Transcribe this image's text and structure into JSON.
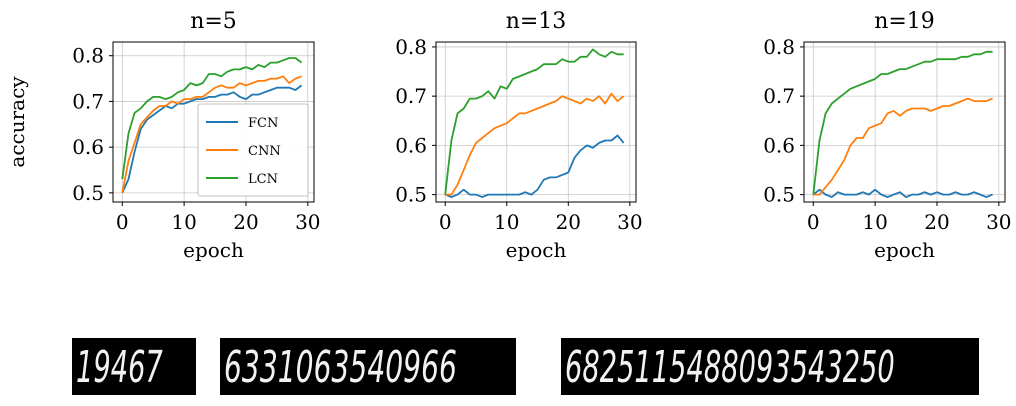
{
  "chart_data": [
    {
      "type": "line",
      "title": "n=5",
      "xlabel": "epoch",
      "ylabel": "accuracy",
      "xlim": [
        -1.5,
        31
      ],
      "ylim": [
        0.48,
        0.83
      ],
      "xticks": [
        0,
        10,
        20,
        30
      ],
      "yticks": [
        0.5,
        0.6,
        0.7,
        0.8
      ],
      "tick_labels_x": [
        "0",
        "10",
        "20",
        "30"
      ],
      "tick_labels_y": [
        "0.5",
        "0.6",
        "0.7",
        "0.8"
      ],
      "grid": true,
      "legend": "bottom-right",
      "series": [
        {
          "name": "FCN",
          "color": "#1f77b4",
          "x": [
            0,
            1,
            2,
            3,
            4,
            5,
            6,
            7,
            8,
            9,
            10,
            11,
            12,
            13,
            14,
            15,
            16,
            17,
            18,
            19,
            20,
            21,
            22,
            23,
            24,
            25,
            26,
            27,
            28,
            29
          ],
          "values": [
            0.5,
            0.53,
            0.59,
            0.64,
            0.66,
            0.67,
            0.68,
            0.69,
            0.685,
            0.695,
            0.695,
            0.7,
            0.705,
            0.705,
            0.71,
            0.71,
            0.715,
            0.715,
            0.72,
            0.71,
            0.705,
            0.715,
            0.715,
            0.72,
            0.725,
            0.73,
            0.73,
            0.73,
            0.725,
            0.735
          ]
        },
        {
          "name": "CNN",
          "color": "#ff7f0e",
          "x": [
            0,
            1,
            2,
            3,
            4,
            5,
            6,
            7,
            8,
            9,
            10,
            11,
            12,
            13,
            14,
            15,
            16,
            17,
            18,
            19,
            20,
            21,
            22,
            23,
            24,
            25,
            26,
            27,
            28,
            29
          ],
          "values": [
            0.5,
            0.57,
            0.61,
            0.65,
            0.665,
            0.68,
            0.69,
            0.69,
            0.7,
            0.695,
            0.705,
            0.705,
            0.71,
            0.71,
            0.72,
            0.73,
            0.735,
            0.73,
            0.73,
            0.74,
            0.735,
            0.74,
            0.745,
            0.745,
            0.75,
            0.75,
            0.755,
            0.74,
            0.75,
            0.755
          ]
        },
        {
          "name": "LCN",
          "color": "#2ca02c",
          "x": [
            0,
            1,
            2,
            3,
            4,
            5,
            6,
            7,
            8,
            9,
            10,
            11,
            12,
            13,
            14,
            15,
            16,
            17,
            18,
            19,
            20,
            21,
            22,
            23,
            24,
            25,
            26,
            27,
            28,
            29
          ],
          "values": [
            0.53,
            0.63,
            0.675,
            0.685,
            0.7,
            0.71,
            0.71,
            0.705,
            0.71,
            0.72,
            0.725,
            0.74,
            0.735,
            0.74,
            0.76,
            0.76,
            0.755,
            0.765,
            0.77,
            0.77,
            0.775,
            0.77,
            0.78,
            0.775,
            0.785,
            0.785,
            0.79,
            0.795,
            0.795,
            0.785
          ]
        }
      ]
    },
    {
      "type": "line",
      "title": "n=13",
      "xlabel": "epoch",
      "ylabel": "",
      "xlim": [
        -1.5,
        31
      ],
      "ylim": [
        0.485,
        0.81
      ],
      "xticks": [
        0,
        10,
        20,
        30
      ],
      "yticks": [
        0.5,
        0.6,
        0.7,
        0.8
      ],
      "tick_labels_x": [
        "0",
        "10",
        "20",
        "30"
      ],
      "tick_labels_y": [
        "0.5",
        "0.6",
        "0.7",
        "0.8"
      ],
      "grid": true,
      "legend": "",
      "series": [
        {
          "name": "FCN",
          "color": "#1f77b4",
          "x": [
            0,
            1,
            2,
            3,
            4,
            5,
            6,
            7,
            8,
            9,
            10,
            11,
            12,
            13,
            14,
            15,
            16,
            17,
            18,
            19,
            20,
            21,
            22,
            23,
            24,
            25,
            26,
            27,
            28,
            29
          ],
          "values": [
            0.5,
            0.495,
            0.5,
            0.51,
            0.5,
            0.5,
            0.495,
            0.5,
            0.5,
            0.5,
            0.5,
            0.5,
            0.5,
            0.505,
            0.5,
            0.51,
            0.53,
            0.535,
            0.535,
            0.54,
            0.545,
            0.575,
            0.59,
            0.6,
            0.595,
            0.605,
            0.61,
            0.61,
            0.62,
            0.605
          ]
        },
        {
          "name": "CNN",
          "color": "#ff7f0e",
          "x": [
            0,
            1,
            2,
            3,
            4,
            5,
            6,
            7,
            8,
            9,
            10,
            11,
            12,
            13,
            14,
            15,
            16,
            17,
            18,
            19,
            20,
            21,
            22,
            23,
            24,
            25,
            26,
            27,
            28,
            29
          ],
          "values": [
            0.5,
            0.5,
            0.52,
            0.55,
            0.58,
            0.605,
            0.615,
            0.625,
            0.635,
            0.64,
            0.645,
            0.655,
            0.665,
            0.665,
            0.67,
            0.675,
            0.68,
            0.685,
            0.69,
            0.7,
            0.695,
            0.69,
            0.685,
            0.695,
            0.69,
            0.7,
            0.685,
            0.705,
            0.69,
            0.7
          ]
        },
        {
          "name": "LCN",
          "color": "#2ca02c",
          "x": [
            0,
            1,
            2,
            3,
            4,
            5,
            6,
            7,
            8,
            9,
            10,
            11,
            12,
            13,
            14,
            15,
            16,
            17,
            18,
            19,
            20,
            21,
            22,
            23,
            24,
            25,
            26,
            27,
            28,
            29
          ],
          "values": [
            0.5,
            0.61,
            0.665,
            0.675,
            0.695,
            0.695,
            0.7,
            0.71,
            0.695,
            0.72,
            0.715,
            0.735,
            0.74,
            0.745,
            0.75,
            0.755,
            0.765,
            0.765,
            0.765,
            0.775,
            0.77,
            0.77,
            0.78,
            0.78,
            0.795,
            0.785,
            0.78,
            0.79,
            0.785,
            0.785
          ]
        }
      ]
    },
    {
      "type": "line",
      "title": "n=19",
      "xlabel": "epoch",
      "ylabel": "",
      "xlim": [
        -1.5,
        31
      ],
      "ylim": [
        0.485,
        0.81
      ],
      "xticks": [
        0,
        10,
        20,
        30
      ],
      "yticks": [
        0.5,
        0.6,
        0.7,
        0.8
      ],
      "tick_labels_x": [
        "0",
        "10",
        "20",
        "30"
      ],
      "tick_labels_y": [
        "0.5",
        "0.6",
        "0.7",
        "0.8"
      ],
      "grid": true,
      "legend": "",
      "series": [
        {
          "name": "FCN",
          "color": "#1f77b4",
          "x": [
            0,
            1,
            2,
            3,
            4,
            5,
            6,
            7,
            8,
            9,
            10,
            11,
            12,
            13,
            14,
            15,
            16,
            17,
            18,
            19,
            20,
            21,
            22,
            23,
            24,
            25,
            26,
            27,
            28,
            29
          ],
          "values": [
            0.5,
            0.51,
            0.5,
            0.495,
            0.505,
            0.5,
            0.5,
            0.5,
            0.505,
            0.5,
            0.51,
            0.5,
            0.495,
            0.5,
            0.505,
            0.495,
            0.5,
            0.5,
            0.505,
            0.5,
            0.505,
            0.5,
            0.5,
            0.505,
            0.5,
            0.5,
            0.505,
            0.5,
            0.495,
            0.5
          ]
        },
        {
          "name": "CNN",
          "color": "#ff7f0e",
          "x": [
            0,
            1,
            2,
            3,
            4,
            5,
            6,
            7,
            8,
            9,
            10,
            11,
            12,
            13,
            14,
            15,
            16,
            17,
            18,
            19,
            20,
            21,
            22,
            23,
            24,
            25,
            26,
            27,
            28,
            29
          ],
          "values": [
            0.5,
            0.5,
            0.515,
            0.53,
            0.55,
            0.57,
            0.6,
            0.615,
            0.615,
            0.635,
            0.64,
            0.645,
            0.665,
            0.67,
            0.66,
            0.67,
            0.675,
            0.675,
            0.675,
            0.67,
            0.675,
            0.68,
            0.68,
            0.685,
            0.69,
            0.695,
            0.69,
            0.69,
            0.69,
            0.695
          ]
        },
        {
          "name": "LCN",
          "color": "#2ca02c",
          "x": [
            0,
            1,
            2,
            3,
            4,
            5,
            6,
            7,
            8,
            9,
            10,
            11,
            12,
            13,
            14,
            15,
            16,
            17,
            18,
            19,
            20,
            21,
            22,
            23,
            24,
            25,
            26,
            27,
            28,
            29
          ],
          "values": [
            0.5,
            0.61,
            0.665,
            0.685,
            0.695,
            0.705,
            0.715,
            0.72,
            0.725,
            0.73,
            0.735,
            0.745,
            0.745,
            0.75,
            0.755,
            0.755,
            0.76,
            0.765,
            0.77,
            0.77,
            0.775,
            0.775,
            0.775,
            0.775,
            0.78,
            0.78,
            0.785,
            0.785,
            0.79,
            0.79
          ]
        }
      ]
    }
  ],
  "digit_strips": [
    {
      "text": "19467"
    },
    {
      "text": "6331063540966"
    },
    {
      "text": "6825115488093543250"
    }
  ]
}
